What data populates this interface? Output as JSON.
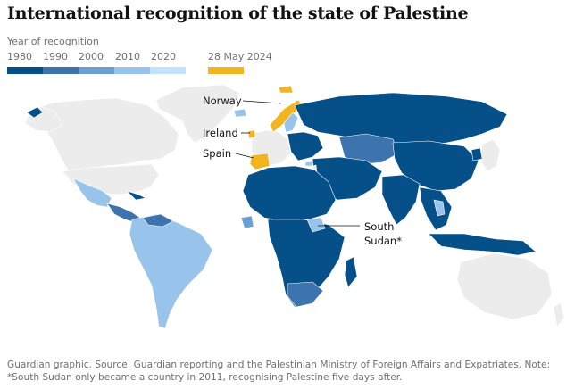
{
  "title": "International recognition of the state of Palestine",
  "legend": {
    "label": "Year of recognition",
    "years": [
      "1980",
      "1990",
      "2000",
      "2010",
      "2020"
    ],
    "colors": [
      "#06508a",
      "#3e74ad",
      "#6b9ed3",
      "#98c4ec",
      "#c2e1fb"
    ],
    "highlight_label": "28 May 2024",
    "highlight_color": "#f2b51f"
  },
  "map_colors": {
    "not_recognised": "#ececec",
    "ocean": "#ffffff"
  },
  "callouts": {
    "norway": "Norway",
    "ireland": "Ireland",
    "spain": "Spain",
    "south_sudan_line1": "South",
    "south_sudan_line2": "Sudan*"
  },
  "footer": {
    "line1": "Guardian graphic. Source: Guardian reporting and the Palestinian Ministry of Foreign Affairs and Expatriates. Note:",
    "line2": "*South Sudan only became a country in 2011, recognising Palestine five days after."
  }
}
